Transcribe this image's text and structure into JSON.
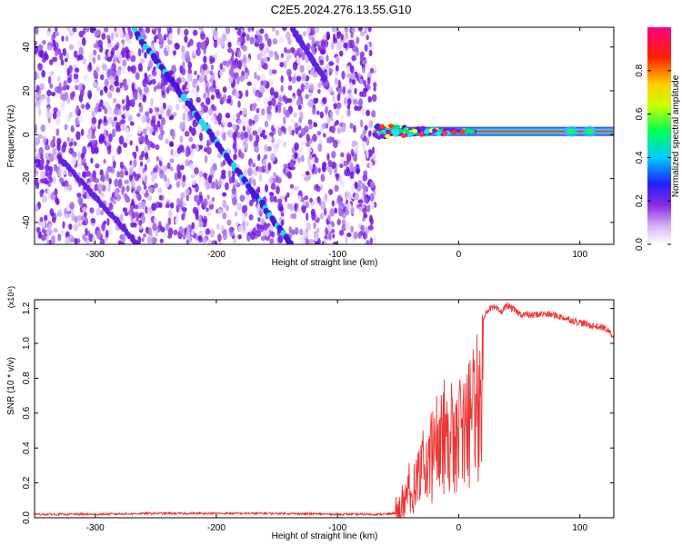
{
  "figure": {
    "title": "C2E5.2024.276.13.55.G10"
  },
  "chart_data": [
    {
      "type": "heatmap",
      "xlabel": "Height of straight line (km)",
      "ylabel": "Frequency (Hz)",
      "xlim": [
        -350,
        128
      ],
      "ylim": [
        -50,
        49
      ],
      "xticks": [
        -300,
        -200,
        -100,
        0,
        100
      ],
      "yticks": [
        -40,
        -20,
        0,
        20,
        40
      ],
      "noise_region_x": [
        -350,
        -69
      ],
      "diagonal_features": [
        {
          "name": "strong-diagonal",
          "points": [
            [
              -268,
              48
            ],
            [
              -138,
              -50
            ]
          ]
        },
        {
          "name": "upper-right-diagonal",
          "points": [
            [
              -137,
              48
            ],
            [
              -110,
              25
            ]
          ]
        },
        {
          "name": "lower-left-diagonal",
          "points": [
            [
              -330,
              -10
            ],
            [
              -265,
              -50
            ]
          ]
        }
      ],
      "signal_band": {
        "x": [
          -69,
          128
        ],
        "frequency_hz": 1.5
      },
      "colorbar": {
        "label": "Normalized spectral amplitude",
        "range": [
          0,
          1
        ],
        "ticks": [
          0.0,
          0.2,
          0.4,
          0.6,
          0.8
        ],
        "colors": [
          "#ffffff",
          "#8a2be2",
          "#0000ff",
          "#00ffff",
          "#00ff00",
          "#ffff00",
          "#ff0000",
          "#ff00a0"
        ]
      }
    },
    {
      "type": "line",
      "xlabel": "Height of straight line (km)",
      "ylabel": "SNR (10 * v/v)",
      "scale_label": "(x10⁴)",
      "xlim": [
        -350,
        128
      ],
      "ylim": [
        0,
        1.25
      ],
      "xticks": [
        -300,
        -200,
        -100,
        0,
        100
      ],
      "yticks": [
        0.0,
        0.2,
        0.4,
        0.6,
        0.8,
        1.0,
        1.2
      ],
      "ytick_labels": [
        "0.0",
        "0.2",
        "0.4",
        "0.6",
        "0.8",
        "1.0",
        "1.2"
      ],
      "color": "#ee3333",
      "series": [
        {
          "name": "SNR",
          "x": [
            -350,
            -300,
            -250,
            -200,
            -150,
            -100,
            -60,
            -50,
            -45,
            -40,
            -35,
            -30,
            -25,
            -20,
            -15,
            -10,
            -5,
            0,
            5,
            10,
            15,
            20,
            25,
            30,
            35,
            40,
            50,
            60,
            70,
            80,
            90,
            100,
            110,
            120,
            128
          ],
          "y": [
            0.02,
            0.02,
            0.025,
            0.025,
            0.025,
            0.02,
            0.02,
            0.03,
            0.15,
            0.25,
            0.35,
            0.42,
            0.5,
            0.6,
            0.7,
            0.75,
            0.8,
            0.85,
            0.9,
            0.95,
            1.05,
            1.15,
            1.2,
            1.2,
            1.18,
            1.22,
            1.17,
            1.16,
            1.17,
            1.16,
            1.14,
            1.12,
            1.1,
            1.09,
            1.04
          ]
        }
      ]
    }
  ]
}
